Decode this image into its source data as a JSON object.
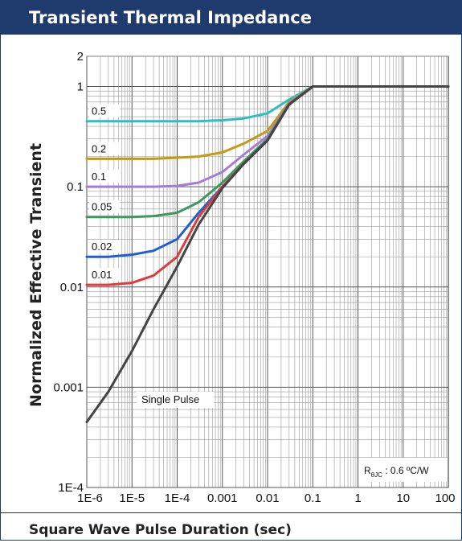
{
  "header": {
    "title": "Transient Thermal Impedance"
  },
  "footer": {
    "xlabel": "Square Wave Pulse Duration (sec)"
  },
  "note": {
    "text": "R",
    "sub": "θJC",
    "value": " : 0.6 ºC/W"
  },
  "chart_data": {
    "type": "line",
    "title": "Transient Thermal Impedance",
    "xlabel": "Square Wave Pulse Duration (sec)",
    "ylabel": "Normalized Effective Transient",
    "xscale": "log",
    "yscale": "log",
    "xlim": [
      1e-06,
      100
    ],
    "ylim": [
      0.0001,
      2
    ],
    "grid": true,
    "x_tick_labels": [
      "1E-6",
      "1E-5",
      "1E-4",
      "0.001",
      "0.01",
      "0.1",
      "1",
      "10",
      "100"
    ],
    "y_tick_labels": [
      "1E-4",
      "0.001",
      "0.01",
      "0.1",
      "1",
      "2"
    ],
    "x": [
      1e-06,
      3e-06,
      1e-05,
      3e-05,
      0.0001,
      0.0003,
      0.001,
      0.003,
      0.01,
      0.03,
      0.1,
      1,
      10,
      100
    ],
    "series": [
      {
        "name": "0.5",
        "color": "#2bbfc4",
        "values": [
          0.45,
          0.45,
          0.45,
          0.45,
          0.45,
          0.45,
          0.46,
          0.48,
          0.54,
          0.74,
          1.0,
          1.0,
          1.0,
          1.0
        ]
      },
      {
        "name": "0.2",
        "color": "#c49a12",
        "values": [
          0.19,
          0.19,
          0.19,
          0.19,
          0.195,
          0.2,
          0.22,
          0.27,
          0.36,
          0.7,
          1.0,
          1.0,
          1.0,
          1.0
        ]
      },
      {
        "name": "0.1",
        "color": "#a77ad9",
        "values": [
          0.1,
          0.1,
          0.1,
          0.1,
          0.102,
          0.11,
          0.14,
          0.21,
          0.32,
          0.68,
          1.0,
          1.0,
          1.0,
          1.0
        ]
      },
      {
        "name": "0.05",
        "color": "#3a9a5c",
        "values": [
          0.05,
          0.05,
          0.05,
          0.051,
          0.055,
          0.07,
          0.11,
          0.18,
          0.3,
          0.67,
          1.0,
          1.0,
          1.0,
          1.0
        ]
      },
      {
        "name": "0.02",
        "color": "#1f5fd6",
        "values": [
          0.02,
          0.02,
          0.021,
          0.023,
          0.03,
          0.055,
          0.1,
          0.17,
          0.29,
          0.66,
          1.0,
          1.0,
          1.0,
          1.0
        ]
      },
      {
        "name": "0.01",
        "color": "#e03a3a",
        "values": [
          0.0105,
          0.0105,
          0.011,
          0.013,
          0.02,
          0.05,
          0.1,
          0.17,
          0.29,
          0.66,
          1.0,
          1.0,
          1.0,
          1.0
        ]
      },
      {
        "name": "Single Pulse",
        "color": "#444444",
        "values": [
          0.00045,
          0.0009,
          0.0023,
          0.006,
          0.016,
          0.042,
          0.097,
          0.17,
          0.29,
          0.66,
          1.0,
          1.0,
          1.0,
          1.0
        ]
      }
    ]
  }
}
